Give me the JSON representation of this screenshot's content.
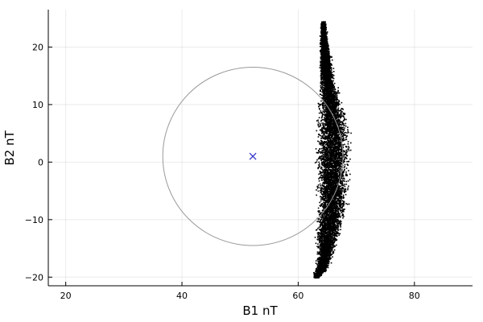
{
  "chart_data": {
    "type": "scatter",
    "title": "",
    "xlabel": "B1 nT",
    "ylabel": "B2 nT",
    "xlim": [
      17,
      90
    ],
    "ylim": [
      -21.5,
      26.5
    ],
    "xticks": [
      20,
      40,
      60,
      80
    ],
    "yticks": [
      -20,
      -10,
      0,
      10,
      20
    ],
    "grid": true,
    "legend": "none",
    "colors": {
      "points": "#000000",
      "circle": "#999999",
      "center_marker": "#3333cc",
      "axis": "#000000"
    },
    "series": [
      {
        "kind": "dense-point-cloud",
        "profile": [
          {
            "y": 24.5,
            "xmin": 63.8,
            "xmax": 64.6
          },
          {
            "y": 22.0,
            "xmin": 63.6,
            "xmax": 65.0
          },
          {
            "y": 20.0,
            "xmin": 63.5,
            "xmax": 65.4
          },
          {
            "y": 17.0,
            "xmin": 63.3,
            "xmax": 66.0
          },
          {
            "y": 14.0,
            "xmin": 63.4,
            "xmax": 66.5
          },
          {
            "y": 11.0,
            "xmin": 63.2,
            "xmax": 67.5
          },
          {
            "y": 8.0,
            "xmin": 63.0,
            "xmax": 68.6
          },
          {
            "y": 5.0,
            "xmin": 62.6,
            "xmax": 69.3
          },
          {
            "y": 2.0,
            "xmin": 62.4,
            "xmax": 69.4
          },
          {
            "y": -1.0,
            "xmin": 62.5,
            "xmax": 69.2
          },
          {
            "y": -4.0,
            "xmin": 62.8,
            "xmax": 68.9
          },
          {
            "y": -7.0,
            "xmin": 62.9,
            "xmax": 68.8
          },
          {
            "y": -10.0,
            "xmin": 62.6,
            "xmax": 68.2
          },
          {
            "y": -13.0,
            "xmin": 62.4,
            "xmax": 67.3
          },
          {
            "y": -16.0,
            "xmin": 62.9,
            "xmax": 66.3
          },
          {
            "y": -18.5,
            "xmin": 62.6,
            "xmax": 65.1
          },
          {
            "y": -20.0,
            "xmin": 62.5,
            "xmax": 63.6
          }
        ]
      }
    ],
    "circle": {
      "cx": 52.2,
      "cy": 1.0,
      "r": 15.5
    },
    "center_marker": {
      "x": 52.2,
      "y": 1.0,
      "symbol": "x"
    }
  }
}
